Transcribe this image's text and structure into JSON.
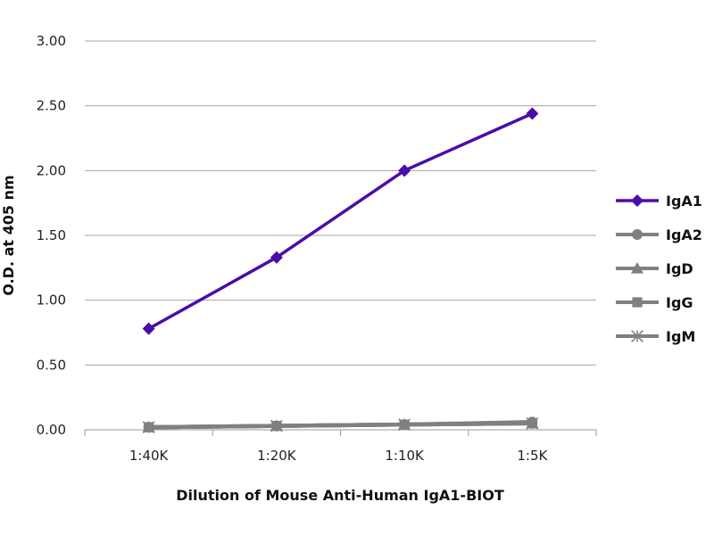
{
  "chart_data": {
    "type": "line",
    "categories": [
      "1:40K",
      "1:20K",
      "1:10K",
      "1:5K"
    ],
    "xlabel": "Dilution of Mouse Anti-Human IgA1-BIOT",
    "ylabel": "O.D. at 405 nm",
    "ylim": [
      0,
      3
    ],
    "yticks": [
      "0.00",
      "0.50",
      "1.00",
      "1.50",
      "2.00",
      "2.50",
      "3.00"
    ],
    "grid": true,
    "legend_position": "right",
    "series": [
      {
        "name": "IgA1",
        "marker": "diamond",
        "color": "#4b0ca8",
        "values": [
          0.78,
          1.33,
          2.0,
          2.44
        ]
      },
      {
        "name": "IgA2",
        "marker": "circle",
        "color": "#808080",
        "values": [
          0.02,
          0.03,
          0.04,
          0.06
        ]
      },
      {
        "name": "IgD",
        "marker": "triangle",
        "color": "#808080",
        "values": [
          0.02,
          0.03,
          0.04,
          0.05
        ]
      },
      {
        "name": "IgG",
        "marker": "square",
        "color": "#808080",
        "values": [
          0.02,
          0.03,
          0.04,
          0.05
        ]
      },
      {
        "name": "IgM",
        "marker": "star",
        "color": "#808080",
        "values": [
          0.02,
          0.03,
          0.04,
          0.05
        ]
      }
    ]
  }
}
